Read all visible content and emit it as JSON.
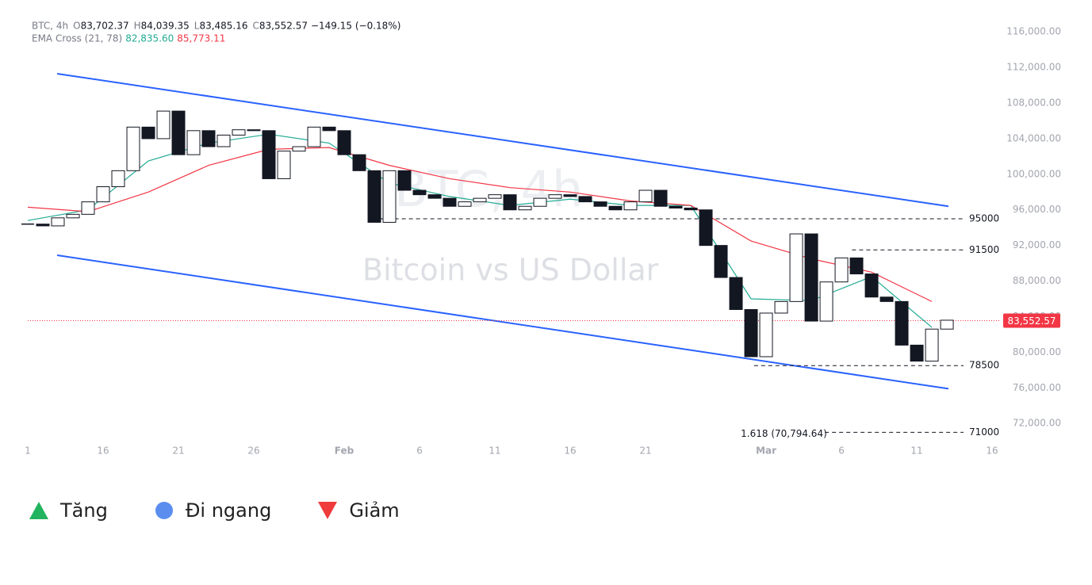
{
  "chart_data": {
    "type": "candlestick",
    "header": {
      "symbol": "BTC, 4h",
      "ohlc": [
        {
          "key": "O",
          "value": "83,702.37"
        },
        {
          "key": "H",
          "value": "84,039.35"
        },
        {
          "key": "L",
          "value": "83,485.16"
        },
        {
          "key": "C",
          "value": "83,552.57"
        }
      ],
      "change": "−149.15 (−0.18%)",
      "indicator": "EMA Cross (21, 78)",
      "indicator_values": [
        {
          "value": "82,835.60",
          "color": "#22ab94"
        },
        {
          "value": "85,773.11",
          "color": "#f23645"
        }
      ]
    },
    "watermark": [
      "BTC, 4h",
      "Bitcoin vs US Dollar"
    ],
    "x": [
      11,
      12,
      13,
      14,
      15,
      16,
      17,
      18,
      19,
      20,
      21,
      22,
      23,
      24,
      25,
      26,
      27,
      28,
      29,
      30,
      31,
      32,
      33,
      34,
      35,
      36,
      37,
      38,
      39,
      40,
      41,
      42,
      43,
      44,
      45,
      46,
      47,
      48,
      49,
      50,
      51,
      52,
      53,
      54,
      55,
      56,
      57,
      58,
      59,
      60,
      61,
      62,
      63,
      64,
      65,
      66,
      67,
      68,
      69,
      70,
      71,
      72
    ],
    "close": [
      94400,
      94200,
      95100,
      95500,
      96900,
      98600,
      100400,
      105300,
      104000,
      107100,
      102200,
      104900,
      103100,
      104400,
      105000,
      104900,
      99500,
      102600,
      103100,
      105300,
      104900,
      102200,
      100400,
      94600,
      100400,
      98200,
      97700,
      97300,
      96400,
      96900,
      97300,
      97700,
      96000,
      96400,
      97300,
      97700,
      97500,
      96900,
      96400,
      96000,
      96900,
      98200,
      96400,
      96200,
      96000,
      92000,
      88400,
      84800,
      79500,
      84400,
      85700,
      93300,
      83500,
      87900,
      90600,
      88800,
      86200,
      85700,
      80800,
      79000,
      82600,
      83600
    ],
    "up_color": "#ffffff",
    "down_color": "#131722",
    "series": [
      {
        "name": "EMA 21",
        "color": "#22ab94",
        "x": [
          11,
          15,
          19,
          23,
          27,
          31,
          35,
          39,
          43,
          47,
          51,
          55,
          59,
          63,
          67,
          71
        ],
        "values": [
          94800,
          96000,
          101500,
          103500,
          104500,
          103500,
          99000,
          97500,
          96500,
          97200,
          96500,
          96500,
          86000,
          85800,
          88500,
          82800
        ]
      },
      {
        "name": "EMA 78",
        "color": "#f23645",
        "x": [
          11,
          15,
          19,
          23,
          27,
          31,
          35,
          39,
          43,
          47,
          51,
          55,
          59,
          63,
          67,
          71
        ],
        "values": [
          96300,
          95800,
          98000,
          101000,
          102800,
          103000,
          101000,
          99500,
          98500,
          98000,
          97000,
          96500,
          92500,
          90500,
          89000,
          85700
        ]
      }
    ],
    "trendlines": [
      {
        "color": "#2962ff",
        "x": [
          12.95,
          72.1
        ],
        "values": [
          111300,
          96400
        ]
      },
      {
        "color": "#2962ff",
        "x": [
          12.95,
          72.1
        ],
        "values": [
          90900,
          75900
        ]
      }
    ],
    "levels": [
      {
        "value": 95000,
        "label": "95000",
        "start": 34.4
      },
      {
        "value": 91500,
        "label": "91500",
        "start": 65.7
      },
      {
        "value": 78500,
        "label": "78500",
        "start": 59.2
      },
      {
        "value": 71000,
        "label": "71000",
        "start": 63.9,
        "note": "1.618 (70,794.64)"
      }
    ],
    "last_price": {
      "value": 83552.57,
      "label": "83,552.57"
    },
    "last_price_color": "#f23645",
    "xlim": [
      11,
      75.47
    ],
    "ylim": [
      69700,
      117800
    ],
    "xticks": [
      {
        "value": 11,
        "label": "1"
      },
      16,
      21,
      26,
      {
        "value": 32,
        "label": "Feb"
      },
      {
        "value": 37,
        "label": "6"
      },
      {
        "value": 42,
        "label": "11"
      },
      {
        "value": 47,
        "label": "16"
      },
      {
        "value": 52,
        "label": "21"
      },
      {
        "value": 60,
        "label": "Mar"
      },
      {
        "value": 65,
        "label": "6"
      },
      {
        "value": 70,
        "label": "11"
      },
      {
        "value": 75,
        "label": "16"
      }
    ],
    "yticks": [
      {
        "value": 72000,
        "label": "72,000.00"
      },
      {
        "value": 76000,
        "label": "76,000.00"
      },
      {
        "value": 80000,
        "label": "80,000.00"
      },
      {
        "value": 84000,
        "label": "84,000.00"
      },
      {
        "value": 88000,
        "label": "88,000.00"
      },
      {
        "value": 92000,
        "label": "92,000.00"
      },
      {
        "value": 96000,
        "label": "96,000.00"
      },
      {
        "value": 100000,
        "label": "100,000.00"
      },
      {
        "value": 104000,
        "label": "104,000.00"
      },
      {
        "value": 108000,
        "label": "108,000.00"
      },
      {
        "value": 112000,
        "label": "112,000.00"
      },
      {
        "value": 116000,
        "label": "116,000.00"
      }
    ],
    "signals": [
      {
        "label": "Tăng",
        "color": "#22b35e",
        "shape": "triangle-up"
      },
      {
        "label": "Đi ngang",
        "color": "#5b8def",
        "shape": "circle"
      },
      {
        "label": "Giảm",
        "color": "#ef3b3b",
        "shape": "triangle-down"
      }
    ]
  }
}
